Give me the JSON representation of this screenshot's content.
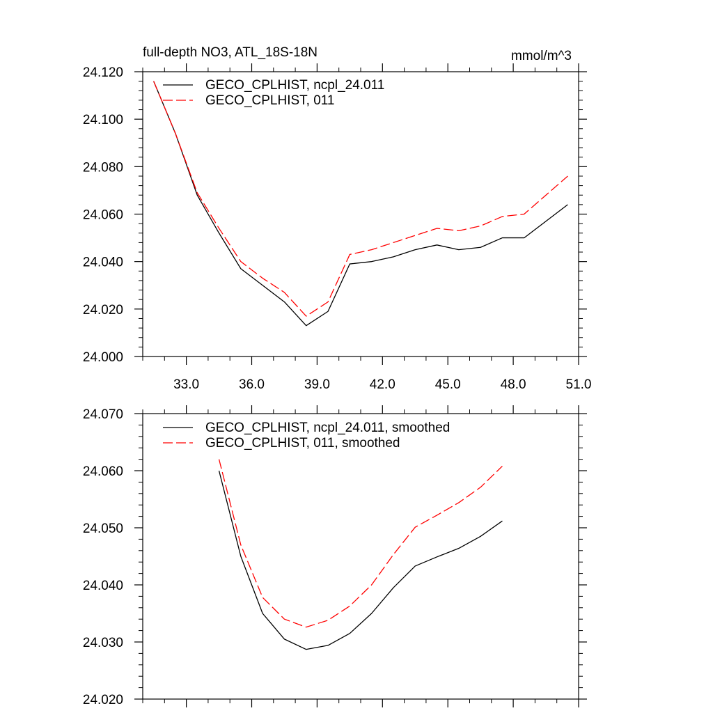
{
  "chart_data": [
    {
      "type": "line",
      "title": "full-depth NO3, ATL_18S-18N",
      "units": "mmol/m^3",
      "xlabel": "",
      "ylabel": "",
      "xlim": [
        31.0,
        51.0
      ],
      "ylim": [
        24.0,
        24.12
      ],
      "x_ticks": [
        33.0,
        36.0,
        39.0,
        42.0,
        45.0,
        48.0,
        51.0
      ],
      "x_tick_labels": [
        "33.0",
        "36.0",
        "39.0",
        "42.0",
        "45.0",
        "48.0",
        "51.0"
      ],
      "y_ticks": [
        24.0,
        24.02,
        24.04,
        24.06,
        24.08,
        24.1,
        24.12
      ],
      "y_tick_labels": [
        "24.000",
        "24.020",
        "24.040",
        "24.060",
        "24.080",
        "24.100",
        "24.120"
      ],
      "x": [
        31.5,
        32.5,
        33.5,
        34.5,
        35.5,
        36.5,
        37.5,
        38.5,
        39.5,
        40.5,
        41.5,
        42.5,
        43.5,
        44.5,
        45.5,
        46.5,
        47.5,
        48.5,
        49.5,
        50.5
      ],
      "series": [
        {
          "name": "GECO_CPLHIST, ncpl_24.011",
          "color": "#000000",
          "dash": "solid",
          "values": [
            24.116,
            24.094,
            24.068,
            24.052,
            24.037,
            24.03,
            24.023,
            24.013,
            24.019,
            24.039,
            24.04,
            24.042,
            24.045,
            24.047,
            24.045,
            24.046,
            24.05,
            24.05,
            24.057,
            24.064
          ]
        },
        {
          "name": "GECO_CPLHIST, 011",
          "color": "#ff0000",
          "dash": "dashed",
          "values": [
            24.116,
            24.094,
            24.069,
            24.054,
            24.04,
            24.033,
            24.027,
            24.017,
            24.023,
            24.043,
            24.045,
            24.048,
            24.051,
            24.054,
            24.053,
            24.055,
            24.059,
            24.06,
            24.068,
            24.076
          ]
        }
      ]
    },
    {
      "type": "line",
      "title": "",
      "units": "",
      "xlabel": "",
      "ylabel": "",
      "xlim": [
        31.0,
        51.0
      ],
      "ylim": [
        24.02,
        24.07
      ],
      "x_ticks": [
        33.0,
        36.0,
        39.0,
        42.0,
        45.0,
        48.0,
        51.0
      ],
      "x_tick_labels": [],
      "y_ticks": [
        24.02,
        24.03,
        24.04,
        24.05,
        24.06,
        24.07
      ],
      "y_tick_labels": [
        "24.020",
        "24.030",
        "24.040",
        "24.050",
        "24.060",
        "24.070"
      ],
      "x": [
        34.5,
        35.5,
        36.5,
        37.5,
        38.5,
        39.5,
        40.5,
        41.5,
        42.5,
        43.5,
        44.5,
        45.5,
        46.5,
        47.5
      ],
      "series": [
        {
          "name": "GECO_CPLHIST, ncpl_24.011, smoothed",
          "color": "#000000",
          "dash": "solid",
          "values": [
            24.06,
            24.045,
            24.035,
            24.0305,
            24.0287,
            24.0294,
            24.0315,
            24.035,
            24.0395,
            24.0433,
            24.0449,
            24.0464,
            24.0485,
            24.0512
          ]
        },
        {
          "name": "GECO_CPLHIST, 011, smoothed",
          "color": "#ff0000",
          "dash": "dashed",
          "values": [
            24.062,
            24.047,
            24.0378,
            24.034,
            24.0326,
            24.0338,
            24.0363,
            24.04,
            24.0453,
            24.0501,
            24.0522,
            24.0544,
            24.0571,
            24.0608
          ]
        }
      ]
    }
  ]
}
